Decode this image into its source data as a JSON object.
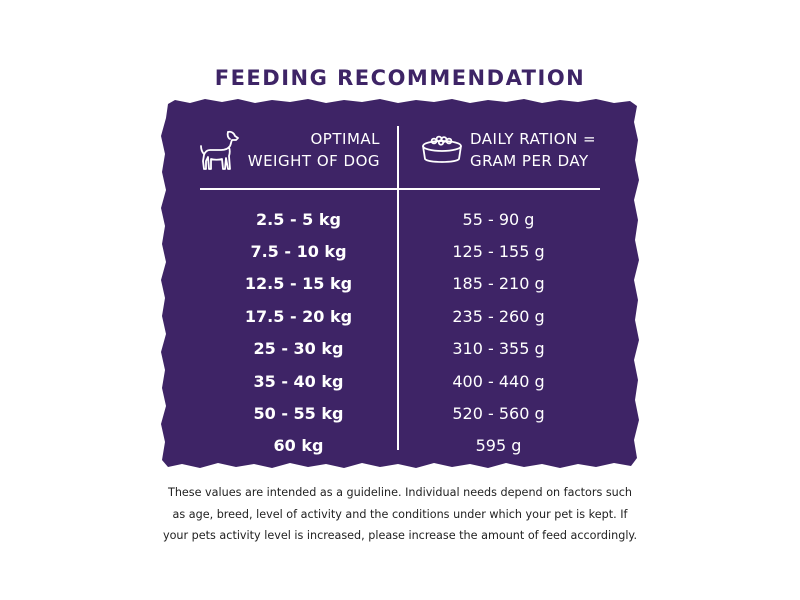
{
  "title": "FEEDING RECOMMENDATION",
  "header": {
    "weight_line1": "OPTIMAL",
    "weight_line2": "WEIGHT OF DOG",
    "ration_line1": "DAILY RATION =",
    "ration_line2": "GRAM PER DAY",
    "weight_icon": "dog-icon",
    "ration_icon": "food-bowl-icon"
  },
  "rows": [
    {
      "weight": "2.5 - 5 kg",
      "ration": "55 - 90 g"
    },
    {
      "weight": "7.5 - 10 kg",
      "ration": "125 - 155 g"
    },
    {
      "weight": "12.5 - 15 kg",
      "ration": "185 - 210 g"
    },
    {
      "weight": "17.5 - 20 kg",
      "ration": "235 - 260 g"
    },
    {
      "weight": "25 - 30 kg",
      "ration": "310 - 355 g"
    },
    {
      "weight": "35 - 40 kg",
      "ration": "400 - 440 g"
    },
    {
      "weight": "50 - 55 kg",
      "ration": "520 - 560 g"
    },
    {
      "weight": "60 kg",
      "ration": "595 g"
    }
  ],
  "footnote": {
    "line1": "These values are intended as a guideline. Individual needs depend on factors such",
    "line2": "as age, breed, level of activity and the conditions under which your pet is kept. If",
    "line3": "your pets activity level is increased, please increase the amount of feed accordingly."
  },
  "colors": {
    "panel": "#3e2466",
    "title": "#3e2466",
    "text_on_panel": "#ffffff",
    "footnote_text": "#1f1f1f"
  }
}
